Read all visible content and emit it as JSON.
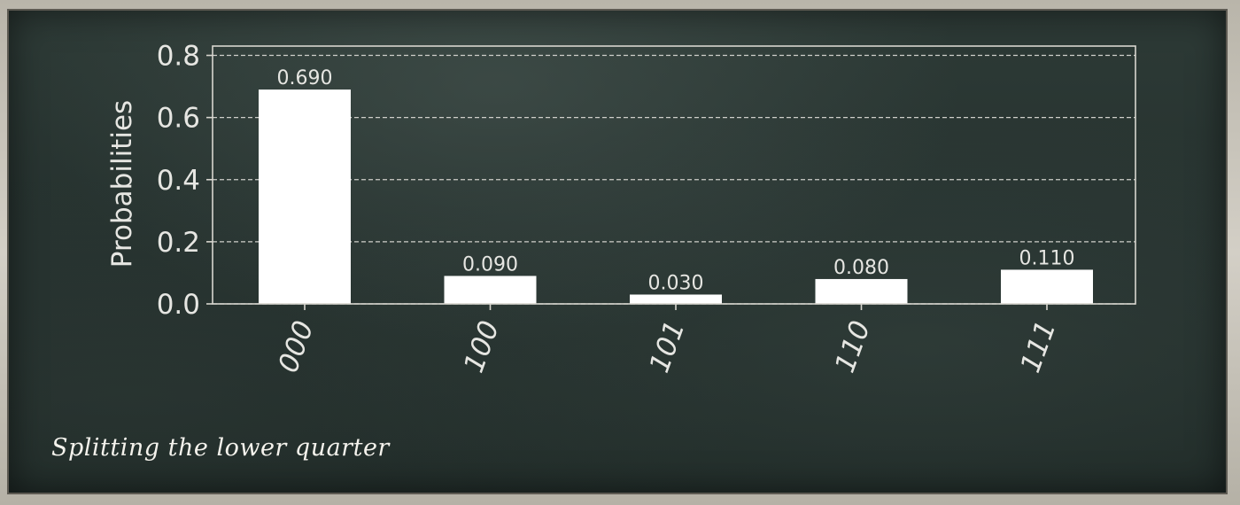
{
  "caption": "Splitting the lower quarter",
  "colors": {
    "board": "#26322f",
    "bars": "#ffffff",
    "text": "#e6e6e2",
    "axes": "#d8d6cf",
    "grid": "#cfcfca"
  },
  "chart_data": {
    "type": "bar",
    "categories": [
      "000",
      "100",
      "101",
      "110",
      "111"
    ],
    "values": [
      0.69,
      0.09,
      0.03,
      0.08,
      0.11
    ],
    "value_labels": [
      "0.690",
      "0.090",
      "0.030",
      "0.080",
      "0.110"
    ],
    "ylabel": "Probabilities",
    "xlabel": "",
    "title": "",
    "ylim": [
      0,
      0.83
    ],
    "yticks": [
      0.0,
      0.2,
      0.4,
      0.6,
      0.8
    ],
    "ytick_labels": [
      "0.0",
      "0.2",
      "0.4",
      "0.6",
      "0.8"
    ],
    "grid": "horizontal-dashed",
    "xtick_rotation": "70"
  }
}
